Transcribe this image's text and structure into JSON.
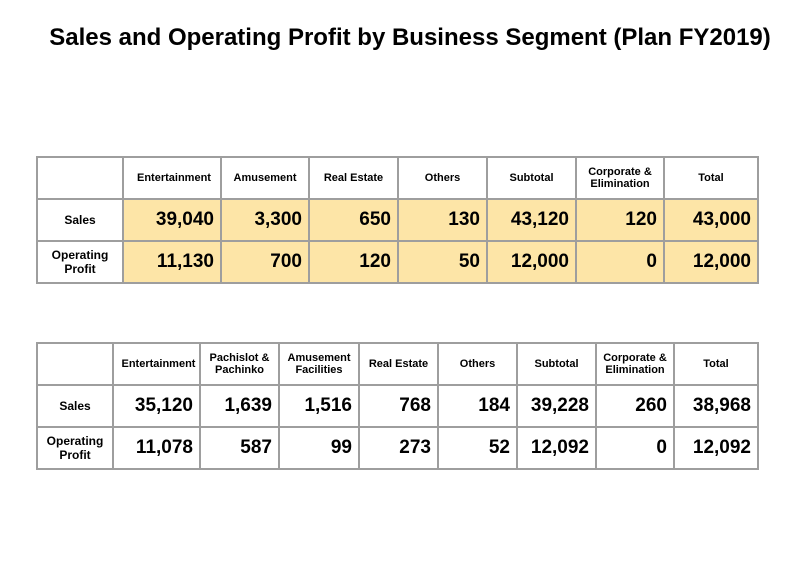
{
  "title": "Sales and Operating Profit by Business Segment (Plan FY2019)",
  "table_1": {
    "columns": [
      "Entertainment",
      "Amusement",
      "Real Estate",
      "Others",
      "Subtotal",
      "Corporate & Elimination",
      "Total"
    ],
    "rows": [
      {
        "label": "Sales",
        "values": [
          "39,040",
          "3,300",
          "650",
          "130",
          "43,120",
          "120",
          "43,000"
        ]
      },
      {
        "label": "Operating Profit",
        "values": [
          "11,130",
          "700",
          "120",
          "50",
          "12,000",
          "0",
          "12,000"
        ]
      }
    ]
  },
  "table_2": {
    "columns": [
      "Entertainment",
      "Pachislot & Pachinko",
      "Amusement Facilities",
      "Real Estate",
      "Others",
      "Subtotal",
      "Corporate & Elimination",
      "Total"
    ],
    "rows": [
      {
        "label": "Sales",
        "values": [
          "35,120",
          "1,639",
          "1,516",
          "768",
          "184",
          "39,228",
          "260",
          "38,968"
        ]
      },
      {
        "label": "Operating Profit",
        "values": [
          "11,078",
          "587",
          "99",
          "273",
          "52",
          "12,092",
          "0",
          "12,092"
        ]
      }
    ]
  }
}
